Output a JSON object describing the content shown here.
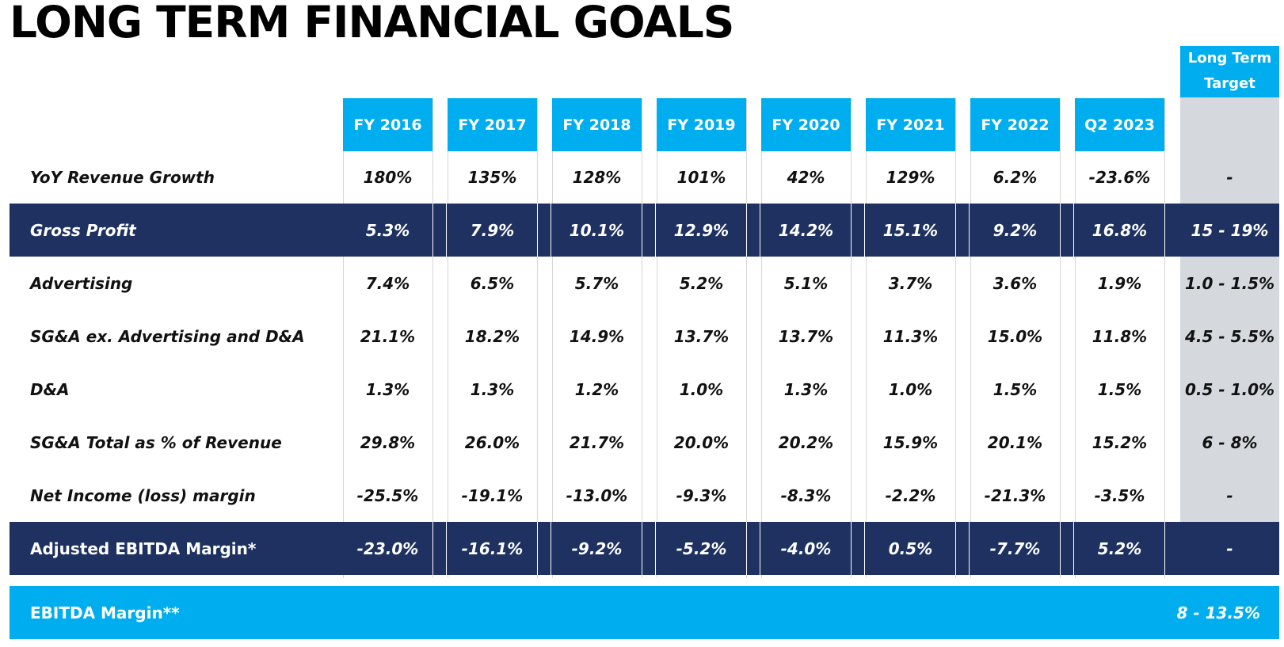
{
  "title": "LONG TERM FINANCIAL GOALS",
  "colors": {
    "accent_blue": "#00aeef",
    "navy": "#1e3160",
    "target_gray": "#d5d9de"
  },
  "table": {
    "target_header": [
      "Long Term",
      "Target"
    ],
    "columns": [
      "FY 2016",
      "FY 2017",
      "FY 2018",
      "FY 2019",
      "FY 2020",
      "FY 2021",
      "FY 2022",
      "Q2 2023"
    ],
    "rows": [
      {
        "label": "YoY Revenue Growth",
        "values": [
          "180%",
          "135%",
          "128%",
          "101%",
          "42%",
          "129%",
          "6.2%",
          "-23.6%"
        ],
        "target": "-"
      },
      {
        "label": "Gross Profit",
        "values": [
          "5.3%",
          "7.9%",
          "10.1%",
          "12.9%",
          "14.2%",
          "15.1%",
          "9.2%",
          "16.8%"
        ],
        "target": "15 - 19%"
      },
      {
        "label": "Advertising",
        "values": [
          "7.4%",
          "6.5%",
          "5.7%",
          "5.2%",
          "5.1%",
          "3.7%",
          "3.6%",
          "1.9%"
        ],
        "target": "1.0 - 1.5%"
      },
      {
        "label": "SG&A ex. Advertising and D&A",
        "values": [
          "21.1%",
          "18.2%",
          "14.9%",
          "13.7%",
          "13.7%",
          "11.3%",
          "15.0%",
          "11.8%"
        ],
        "target": "4.5 - 5.5%"
      },
      {
        "label": "D&A",
        "values": [
          "1.3%",
          "1.3%",
          "1.2%",
          "1.0%",
          "1.3%",
          "1.0%",
          "1.5%",
          "1.5%"
        ],
        "target": "0.5 - 1.0%"
      },
      {
        "label": "SG&A Total as % of Revenue",
        "values": [
          "29.8%",
          "26.0%",
          "21.7%",
          "20.0%",
          "20.2%",
          "15.9%",
          "20.1%",
          "15.2%"
        ],
        "target": "6 - 8%"
      },
      {
        "label": "Net Income (loss) margin",
        "values": [
          "-25.5%",
          "-19.1%",
          "-13.0%",
          "-9.3%",
          "-8.3%",
          "-2.2%",
          "-21.3%",
          "-3.5%"
        ],
        "target": "-"
      },
      {
        "label": "Adjusted EBITDA Margin*",
        "values": [
          "-23.0%",
          "-16.1%",
          "-9.2%",
          "-5.2%",
          "-4.0%",
          "0.5%",
          "-7.7%",
          "5.2%"
        ],
        "target": "-"
      }
    ],
    "footer": {
      "label": "EBITDA Margin**",
      "value": "8 - 13.5%"
    }
  }
}
